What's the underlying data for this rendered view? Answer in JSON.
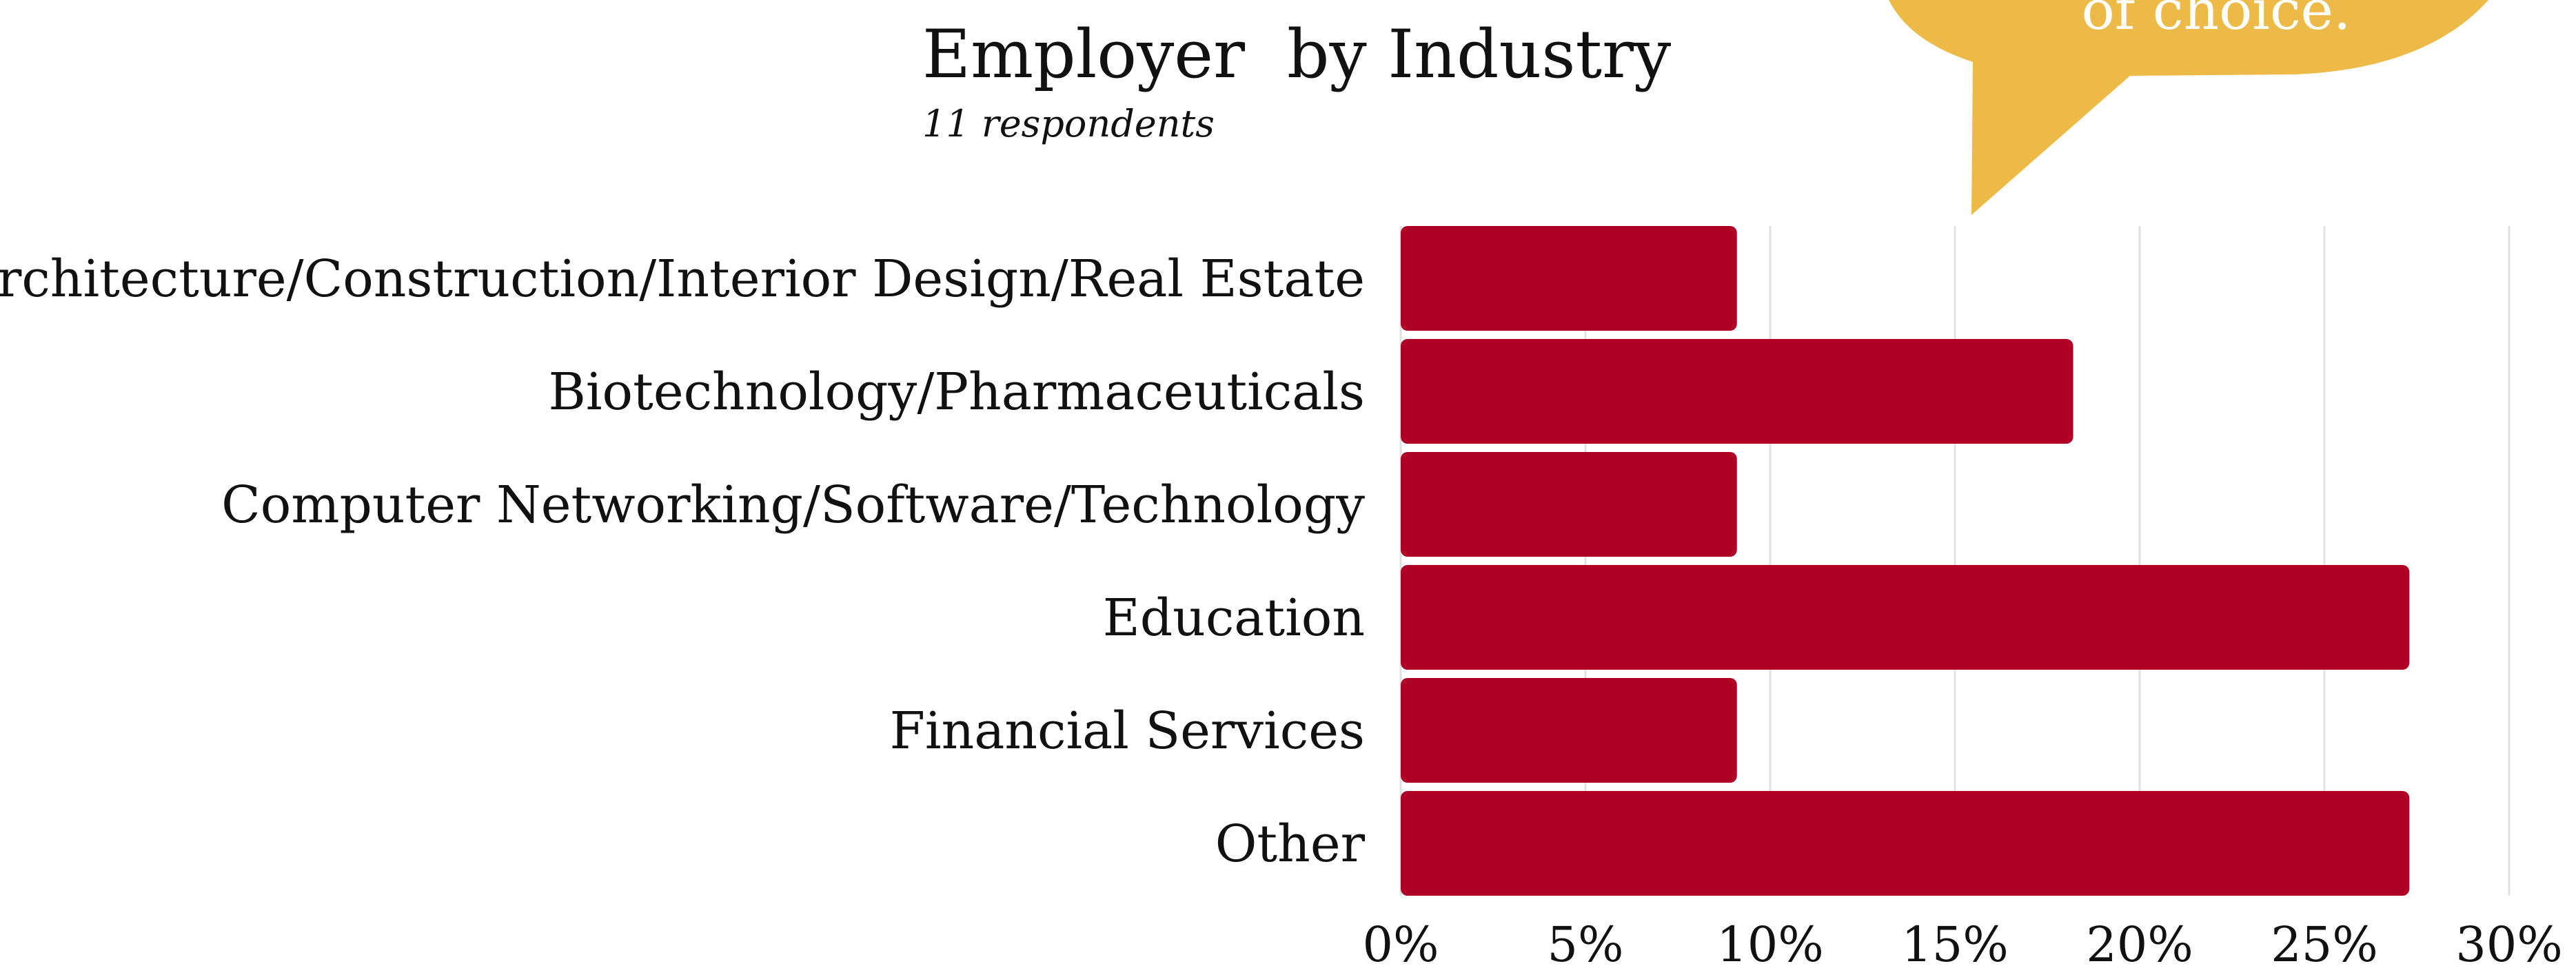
{
  "chart_data": {
    "type": "bar",
    "orientation": "horizontal",
    "title": "Employer  by Industry",
    "subtitle": "11 respondents",
    "categories": [
      "Architecture/Construction/Interior Design/Real Estate",
      "Biotechnology/Pharmaceuticals",
      "Computer Networking/Software/Technology",
      "Education",
      "Financial Services",
      "Other"
    ],
    "values": [
      9.1,
      18.2,
      9.1,
      27.3,
      9.1,
      27.3
    ],
    "xlim": [
      0,
      30
    ],
    "ticks": [
      "0%",
      "5%",
      "10%",
      "15%",
      "20%",
      "25%",
      "30%"
    ],
    "tick_values": [
      0,
      5,
      10,
      15,
      20,
      25,
      30
    ],
    "grid": true,
    "bar_color": "#B00024",
    "xlabel": "",
    "ylabel": ""
  },
  "callout": {
    "text": "of choice.",
    "color": "#EDBA48"
  }
}
